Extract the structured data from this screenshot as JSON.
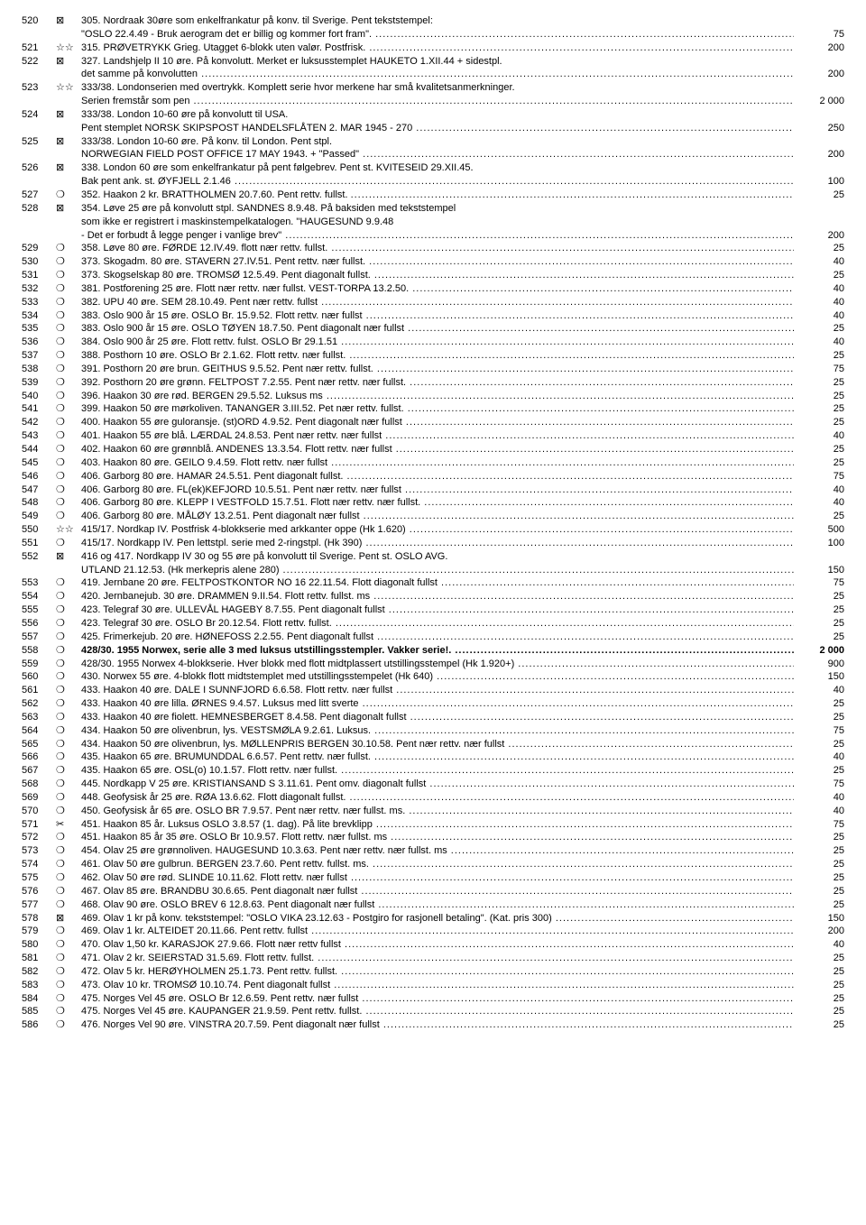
{
  "rows": [
    {
      "lot": "520",
      "sym": "⊠",
      "lines": [
        "305. Nordraak 30øre som enkelfrankatur på konv. til Sverige. Pent tekststempel:",
        "\"OSLO 22.4.49 - Bruk aerogram det er billig og kommer fort fram\"."
      ],
      "price": "75"
    },
    {
      "lot": "521",
      "sym": "☆☆",
      "lines": [
        "315. PRØVETRYKK Grieg. Utagget 6-blokk uten valør. Postfrisk."
      ],
      "price": "200"
    },
    {
      "lot": "522",
      "sym": "⊠",
      "lines": [
        "327. Landshjelp II 10 øre. På konvolutt. Merket er luksusstemplet HAUKETO 1.XII.44 + sidestpl.",
        "det samme på konvolutten"
      ],
      "price": "200"
    },
    {
      "lot": "523",
      "sym": "☆☆",
      "lines": [
        "333/38. Londonserien med overtrykk. Komplett serie hvor merkene har små kvalitetsanmerkninger.",
        "Serien fremstår som pen"
      ],
      "price": "2 000"
    },
    {
      "lot": "524",
      "sym": "⊠",
      "lines": [
        "333/38. London 10-60 øre på konvolutt til USA.",
        "Pent stemplet NORSK SKIPSPOST HANDELSFLÅTEN 2. MAR 1945 - 270"
      ],
      "price": "250"
    },
    {
      "lot": "525",
      "sym": "⊠",
      "lines": [
        "333/38. London 10-60 øre. På konv. til London. Pent stpl.",
        "NORWEGIAN FIELD POST OFFICE 17 MAY 1943. + \"Passed\""
      ],
      "price": "200"
    },
    {
      "lot": "526",
      "sym": "⊠",
      "lines": [
        "338. London 60 øre som enkelfrankatur på pent følgebrev. Pent st. KVITESEID 29.XII.45.",
        "Bak pent ank. st. ØYFJELL 2.1.46"
      ],
      "price": "100"
    },
    {
      "lot": "527",
      "sym": "❍",
      "lines": [
        "352. Haakon 2 kr. BRATTHOLMEN 20.7.60. Pent rettv. fullst. "
      ],
      "price": "25"
    },
    {
      "lot": "528",
      "sym": "⊠",
      "lines": [
        "354. Løve 25  øre på konvolutt stpl. SANDNES 8.9.48. På baksiden med tekststempel",
        "som ikke er registrert i maskinstempelkatalogen. \"HAUGESUND 9.9.48",
        "- Det er forbudt å legge penger i vanlige brev\""
      ],
      "price": "200"
    },
    {
      "lot": "529",
      "sym": "❍",
      "lines": [
        "358. Løve 80 øre. FØRDE 12.IV.49. flott nær rettv. fullst."
      ],
      "price": "25"
    },
    {
      "lot": "530",
      "sym": "❍",
      "lines": [
        "373. Skogadm. 80 øre. STAVERN 27.IV.51. Pent rettv. nær fullst."
      ],
      "price": "40"
    },
    {
      "lot": "531",
      "sym": "❍",
      "lines": [
        "373. Skogselskap 80 øre. TROMSØ 12.5.49. Pent diagonalt fullst."
      ],
      "price": "25"
    },
    {
      "lot": "532",
      "sym": "❍",
      "lines": [
        "381. Postforening 25 øre. Flott nær rettv. nær fullst. VEST-TORPA 13.2.50."
      ],
      "price": "40"
    },
    {
      "lot": "533",
      "sym": "❍",
      "lines": [
        "382. UPU 40 øre. SEM 28.10.49. Pent nær rettv. fullst"
      ],
      "price": "40"
    },
    {
      "lot": "534",
      "sym": "❍",
      "lines": [
        "383. Oslo 900 år 15 øre. OSLO Br. 15.9.52. Flott rettv. nær fullst"
      ],
      "price": "40"
    },
    {
      "lot": "535",
      "sym": "❍",
      "lines": [
        "383. Oslo 900 år 15 øre. OSLO TØYEN 18.7.50. Pent diagonalt nær fullst"
      ],
      "price": "25"
    },
    {
      "lot": "536",
      "sym": "❍",
      "lines": [
        "384. Oslo 900 år 25 øre. Flott rettv. fulst. OSLO Br 29.1.51"
      ],
      "price": "40"
    },
    {
      "lot": "537",
      "sym": "❍",
      "lines": [
        "388. Posthorn 10 øre. OSLO Br 2.1.62. Flott rettv. nær fullst."
      ],
      "price": "25"
    },
    {
      "lot": "538",
      "sym": "❍",
      "lines": [
        "391. Posthorn 20 øre brun. GEITHUS 9.5.52. Pent nær rettv. fullst."
      ],
      "price": "75"
    },
    {
      "lot": "539",
      "sym": "❍",
      "lines": [
        "392. Posthorn 20 øre grønn. FELTPOST 7.2.55. Pent nær rettv. nær fullst."
      ],
      "price": "25"
    },
    {
      "lot": "540",
      "sym": "❍",
      "lines": [
        "396. Haakon 30 øre rød. BERGEN 29.5.52. Luksus ms"
      ],
      "price": "25"
    },
    {
      "lot": "541",
      "sym": "❍",
      "lines": [
        "399. Haakon 50 øre mørkoliven. TANANGER 3.III.52. Pet nær rettv. fullst."
      ],
      "price": "25"
    },
    {
      "lot": "542",
      "sym": "❍",
      "lines": [
        "400. Haakon 55 øre guloransje. (st)ORD 4.9.52. Pent diagonalt nær fullst"
      ],
      "price": "25"
    },
    {
      "lot": "543",
      "sym": "❍",
      "lines": [
        "401. Haakon 55 øre blå. LÆRDAL 24.8.53. Pent nær rettv. nær fullst"
      ],
      "price": "40"
    },
    {
      "lot": "544",
      "sym": "❍",
      "lines": [
        "402. Haakon 60 øre grønnblå. ANDENES 13.3.54. Flott rettv. nær fullst"
      ],
      "price": "25"
    },
    {
      "lot": "545",
      "sym": "❍",
      "lines": [
        "403. Haakon 80 øre. GEILO 9.4.59. Flott rettv. nær fullst"
      ],
      "price": "25"
    },
    {
      "lot": "546",
      "sym": "❍",
      "lines": [
        "406. Garborg 80 øre. HAMAR 24.5.51. Pent diagonalt fullst."
      ],
      "price": "75"
    },
    {
      "lot": "547",
      "sym": "❍",
      "lines": [
        "406. Garborg 80 øre. FL(ek)KEFJORD 10.5.51. Pent nær rettv. nær fullst"
      ],
      "price": "40"
    },
    {
      "lot": "548",
      "sym": "❍",
      "lines": [
        "406. Garborg 80 øre. KLEPP I VESTFOLD 15.7.51. Flott nær rettv. nær fullst."
      ],
      "price": "40"
    },
    {
      "lot": "549",
      "sym": "❍",
      "lines": [
        "406. Garborg 80 øre. MÅLØY 13.2.51. Pent diagonalt nær fullst"
      ],
      "price": "25"
    },
    {
      "lot": "550",
      "sym": "☆☆",
      "lines": [
        "415/17. Nordkap IV. Postfrisk 4-blokkserie med arkkanter oppe (Hk 1.620)"
      ],
      "price": "500"
    },
    {
      "lot": "551",
      "sym": "❍",
      "lines": [
        "415/17. Nordkapp IV. Pen lettstpl. serie med 2-ringstpl. (Hk 390)"
      ],
      "price": "100"
    },
    {
      "lot": "552",
      "sym": "⊠",
      "lines": [
        "416 og 417. Nordkapp IV 30 og 55 øre på konvolutt til Sverige. Pent st. OSLO AVG.",
        "UTLAND 21.12.53. (Hk merkepris alene 280)"
      ],
      "price": "150"
    },
    {
      "lot": "553",
      "sym": "❍",
      "lines": [
        "419. Jernbane 20 øre. FELTPOSTKONTOR NO 16 22.11.54. Flott diagonalt fullst"
      ],
      "price": "75"
    },
    {
      "lot": "554",
      "sym": "❍",
      "lines": [
        "420. Jernbanejub. 30 øre. DRAMMEN 9.II.54. Flott rettv. fullst. ms"
      ],
      "price": "25"
    },
    {
      "lot": "555",
      "sym": "❍",
      "lines": [
        "423. Telegraf 30 øre. ULLEVÅL HAGEBY 8.7.55. Pent diagonalt fullst"
      ],
      "price": "25"
    },
    {
      "lot": "556",
      "sym": "❍",
      "lines": [
        "423. Telegraf 30 øre. OSLO Br 20.12.54. Flott rettv. fullst."
      ],
      "price": "25"
    },
    {
      "lot": "557",
      "sym": "❍",
      "lines": [
        "425. Frimerkejub. 20 øre. HØNEFOSS 2.2.55. Pent diagonalt fullst"
      ],
      "price": "25"
    },
    {
      "lot": "558",
      "sym": "❍",
      "lines": [
        "428/30. 1955 Norwex, serie alle 3 med luksus utstillingsstempler. Vakker serie!."
      ],
      "price": "2 000",
      "bold": true
    },
    {
      "lot": "559",
      "sym": "❍",
      "lines": [
        "428/30. 1955 Norwex 4-blokkserie. Hver blokk med flott midtplassert utstillingsstempel (Hk 1.920+)"
      ],
      "price": "900"
    },
    {
      "lot": "560",
      "sym": "❍",
      "lines": [
        "430. Norwex 55 øre. 4-blokk flott midtstemplet med utstillingsstempelet (Hk 640)"
      ],
      "price": "150"
    },
    {
      "lot": "561",
      "sym": "❍",
      "lines": [
        "433. Haakon 40 øre. DALE I SUNNFJORD 6.6.58. Flott rettv. nær fullst"
      ],
      "price": "40"
    },
    {
      "lot": "562",
      "sym": "❍",
      "lines": [
        "433. Haakon 40 øre lilla. ØRNES 9.4.57. Luksus med litt sverte"
      ],
      "price": "25"
    },
    {
      "lot": "563",
      "sym": "❍",
      "lines": [
        "433. Haakon 40 øre fiolett. HEMNESBERGET 8.4.58. Pent diagonalt fullst"
      ],
      "price": "25"
    },
    {
      "lot": "564",
      "sym": "❍",
      "lines": [
        "434. Haakon 50 øre olivenbrun, lys. VESTSMØLA 9.2.61. Luksus."
      ],
      "price": "75"
    },
    {
      "lot": "565",
      "sym": "❍",
      "lines": [
        "434. Haakon 50 øre olivenbrun, lys. MØLLENPRIS BERGEN 30.10.58. Pent nær rettv. nær fullst"
      ],
      "price": "25"
    },
    {
      "lot": "566",
      "sym": "❍",
      "lines": [
        "435. Haakon 65 øre. BRUMUNDDAL 6.6.57. Pent rettv. nær fullst."
      ],
      "price": "40"
    },
    {
      "lot": "567",
      "sym": "❍",
      "lines": [
        "435. Haakon 65 øre. OSL(o) 10.1.57. Flott rettv. nær fullst."
      ],
      "price": "25"
    },
    {
      "lot": "568",
      "sym": "❍",
      "lines": [
        "445. Nordkapp V 25 øre. KRISTIANSAND S 3.11.61. Pent omv. diagonalt fullst"
      ],
      "price": "75"
    },
    {
      "lot": "569",
      "sym": "❍",
      "lines": [
        "448. Geofysisk år 25 øre. RØA 13.6.62. Flott diagonalt fullst."
      ],
      "price": "40"
    },
    {
      "lot": "570",
      "sym": "❍",
      "lines": [
        "450. Geofysisk år 65 øre. OSLO BR 7.9.57. Pent nær rettv. nær fullst. ms."
      ],
      "price": "40"
    },
    {
      "lot": "571",
      "sym": "✂",
      "lines": [
        "451. Haakon 85 år. Luksus OSLO 3.8.57 (1. dag). På lite brevklipp"
      ],
      "price": "75"
    },
    {
      "lot": "572",
      "sym": "❍",
      "lines": [
        "451. Haakon 85 år 35 øre. OSLO Br 10.9.57. Flott rettv. nær fullst. ms"
      ],
      "price": "25"
    },
    {
      "lot": "573",
      "sym": "❍",
      "lines": [
        "454. Olav 25 øre grønnoliven. HAUGESUND 10.3.63. Pent nær rettv. nær fullst. ms"
      ],
      "price": "25"
    },
    {
      "lot": "574",
      "sym": "❍",
      "lines": [
        "461. Olav 50 øre gulbrun. BERGEN 23.7.60. Pent rettv. fullst. ms."
      ],
      "price": "25"
    },
    {
      "lot": "575",
      "sym": "❍",
      "lines": [
        "462. Olav 50 øre rød. SLINDE 10.11.62. Flott rettv. nær fullst"
      ],
      "price": "25"
    },
    {
      "lot": "576",
      "sym": "❍",
      "lines": [
        "467. Olav 85 øre. BRANDBU 30.6.65. Pent diagonalt nær fullst"
      ],
      "price": "25"
    },
    {
      "lot": "577",
      "sym": "❍",
      "lines": [
        "468. Olav 90 øre. OSLO BREV 6 12.8.63. Pent diagonalt nær fullst"
      ],
      "price": "25"
    },
    {
      "lot": "578",
      "sym": "⊠",
      "lines": [
        "469. Olav 1 kr på konv. tekststempel: \"OSLO VIKA 23.12.63 - Postgiro for rasjonell betaling\". (Kat. pris 300)"
      ],
      "price": "150"
    },
    {
      "lot": "579",
      "sym": "❍",
      "lines": [
        "469. Olav 1 kr. ALTEIDET 20.11.66. Pent rettv. fullst"
      ],
      "price": "200"
    },
    {
      "lot": "580",
      "sym": "❍",
      "lines": [
        "470. Olav 1,50 kr. KARASJOK 27.9.66. Flott nær rettv fullst"
      ],
      "price": "40"
    },
    {
      "lot": "581",
      "sym": "❍",
      "lines": [
        "471. Olav 2 kr. SEIERSTAD 31.5.69. Flott rettv. fullst."
      ],
      "price": "25"
    },
    {
      "lot": "582",
      "sym": "❍",
      "lines": [
        "472. Olav 5 kr. HERØYHOLMEN 25.1.73. Pent rettv. fullst."
      ],
      "price": "25"
    },
    {
      "lot": "583",
      "sym": "❍",
      "lines": [
        "473. Olav 10 kr. TROMSØ 10.10.74. Pent diagonalt fullst"
      ],
      "price": "25"
    },
    {
      "lot": "584",
      "sym": "❍",
      "lines": [
        "475. Norges Vel 45 øre. OSLO Br 12.6.59. Pent rettv. nær fullst"
      ],
      "price": "25"
    },
    {
      "lot": "585",
      "sym": "❍",
      "lines": [
        "475. Norges Vel 45 øre. KAUPANGER 21.9.59. Pent rettv. fullst."
      ],
      "price": "25"
    },
    {
      "lot": "586",
      "sym": "❍",
      "lines": [
        "476. Norges Vel 90 øre. VINSTRA 20.7.59. Pent diagonalt nær fullst"
      ],
      "price": "25"
    }
  ]
}
